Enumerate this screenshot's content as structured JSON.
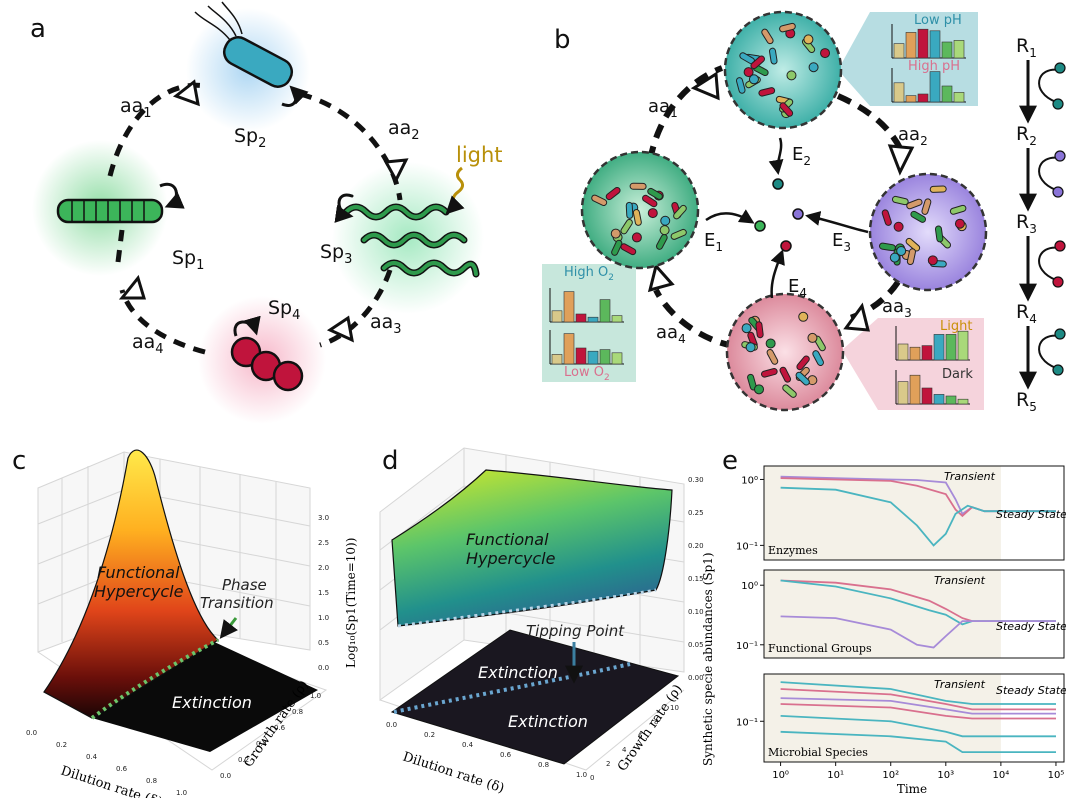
{
  "panel_labels": [
    "a",
    "b",
    "c",
    "d",
    "e"
  ],
  "panel_a": {
    "aa": [
      "aa",
      "aa",
      "aa",
      "aa"
    ],
    "aa_sub": [
      "1",
      "2",
      "3",
      "4"
    ],
    "sp": [
      "Sp",
      "Sp",
      "Sp",
      "Sp"
    ],
    "sp_sub": [
      "1",
      "2",
      "3",
      "4"
    ],
    "light": "light",
    "colors": {
      "sp1": "#3cb55a",
      "sp2": "#3aa9c0",
      "sp3": "#2e9a4c",
      "sp4": "#c0143c",
      "light": "#b8900a"
    }
  },
  "panel_b": {
    "aa": [
      "aa",
      "aa",
      "aa",
      "aa"
    ],
    "aa_sub": [
      "1",
      "2",
      "3",
      "4"
    ],
    "e": [
      "E",
      "E",
      "E",
      "E"
    ],
    "e_sub": [
      "1",
      "2",
      "3",
      "4"
    ],
    "r": [
      "R",
      "R",
      "R",
      "R",
      "R"
    ],
    "r_sub": [
      "1",
      "2",
      "3",
      "4",
      "5"
    ],
    "conditions": {
      "low_ph": "Low pH",
      "high_ph": "High pH",
      "high_o2": "High O",
      "low_o2": "Low O",
      "o2_sub": "2",
      "light": "Light",
      "dark": "Dark"
    },
    "bar_charts": {
      "low_ph": [
        0.45,
        0.8,
        0.9,
        0.85,
        0.5,
        0.55
      ],
      "high_ph": [
        0.6,
        0.2,
        0.25,
        0.95,
        0.5,
        0.3
      ],
      "high_o2": [
        0.35,
        0.95,
        0.25,
        0.15,
        0.7,
        0.2
      ],
      "low_o2": [
        0.3,
        0.95,
        0.5,
        0.4,
        0.45,
        0.35
      ],
      "light": [
        0.5,
        0.4,
        0.45,
        0.8,
        0.8,
        0.9
      ],
      "dark": [
        0.7,
        0.9,
        0.5,
        0.3,
        0.25,
        0.15
      ]
    }
  },
  "panel_c": {
    "regions": [
      "Functional\nHypercycle",
      "Extinction"
    ],
    "annotation": "Phase\nTransition",
    "xlabel": "Dilution rate (δ)",
    "ylabel": "Growth rate (ρ)",
    "zlabel": "Log₁₀(Sp1(Time=10))",
    "x_ticks": [
      "0.0",
      "0.2",
      "0.4",
      "0.6",
      "0.8",
      "1.0"
    ],
    "y_ticks": [
      "0.0",
      "0.2",
      "0.4",
      "0.6",
      "0.8",
      "1.0"
    ],
    "z_ticks": [
      "0.0",
      "0.5",
      "1.0",
      "1.5",
      "2.0",
      "2.5",
      "3.0"
    ]
  },
  "panel_d": {
    "regions": [
      "Functional\nHypercycle",
      "Extinction",
      "Extinction"
    ],
    "annotation": "Tipping Point",
    "xlabel": "Dilution rate (δ)",
    "ylabel": "Growth rate (ρ)",
    "x_ticks": [
      "0.0",
      "0.2",
      "0.4",
      "0.6",
      "0.8",
      "1.0"
    ],
    "y_ticks": [
      "0",
      "2",
      "4",
      "6",
      "8",
      "10"
    ],
    "z_ticks": [
      "0.00",
      "0.05",
      "0.10",
      "0.15",
      "0.20",
      "0.25",
      "0.30"
    ]
  },
  "chart_data": {
    "type": "line",
    "ylabel": "Synthetic specie abundances (Sp1)",
    "xlabel": "Time",
    "x_ticks": [
      "10⁰",
      "10¹",
      "10²",
      "10³",
      "10⁴",
      "10⁵"
    ],
    "log_x": true,
    "log_y": true,
    "annotations": [
      "Transient",
      "Steady State"
    ],
    "subplots": [
      {
        "name": "Enzymes",
        "y_ticks": [
          "10⁰",
          "10⁻¹"
        ],
        "series": [
          {
            "color": "#a78bd8",
            "x": [
              1,
              10,
              100,
              300,
              1000,
              1500,
              2000,
              3000,
              5000,
              100000
            ],
            "y": [
              1.1,
              1.05,
              1.0,
              0.98,
              0.9,
              0.5,
              0.3,
              0.38,
              0.33,
              0.33
            ]
          },
          {
            "color": "#d9708e",
            "x": [
              1,
              10,
              100,
              300,
              1000,
              1500,
              2000,
              3000,
              5000,
              100000
            ],
            "y": [
              1.05,
              1.0,
              0.95,
              0.8,
              0.6,
              0.35,
              0.28,
              0.38,
              0.33,
              0.33
            ]
          },
          {
            "color": "#4ab5c0",
            "x": [
              1,
              10,
              100,
              300,
              600,
              1000,
              1500,
              2500,
              5000,
              100000
            ],
            "y": [
              0.75,
              0.7,
              0.45,
              0.2,
              0.1,
              0.15,
              0.3,
              0.4,
              0.33,
              0.33
            ]
          }
        ]
      },
      {
        "name": "Functional Groups",
        "y_ticks": [
          "10⁰",
          "10⁻¹"
        ],
        "series": [
          {
            "color": "#d9708e",
            "x": [
              1,
              10,
              100,
              500,
              1000,
              2000,
              3000,
              100000
            ],
            "y": [
              1.2,
              1.1,
              0.85,
              0.55,
              0.4,
              0.28,
              0.25,
              0.25
            ]
          },
          {
            "color": "#4ab5c0",
            "x": [
              1,
              10,
              100,
              500,
              1000,
              2000,
              3000,
              100000
            ],
            "y": [
              1.2,
              0.95,
              0.6,
              0.38,
              0.32,
              0.22,
              0.25,
              0.25
            ]
          },
          {
            "color": "#a78bd8",
            "x": [
              1,
              10,
              100,
              300,
              600,
              1000,
              2000,
              100000
            ],
            "y": [
              0.3,
              0.28,
              0.18,
              0.1,
              0.09,
              0.14,
              0.25,
              0.25
            ]
          }
        ]
      },
      {
        "name": "Microbial Species",
        "y_ticks": [
          "10⁻¹"
        ],
        "series": [
          {
            "color": "#4ab5c0",
            "x": [
              1,
              100,
              1000,
              3000,
              100000
            ],
            "y": [
              0.38,
              0.3,
              0.2,
              0.18,
              0.18
            ]
          },
          {
            "color": "#d9708e",
            "x": [
              1,
              100,
              1000,
              3000,
              100000
            ],
            "y": [
              0.3,
              0.25,
              0.18,
              0.15,
              0.15
            ]
          },
          {
            "color": "#a78bd8",
            "x": [
              1,
              100,
              1000,
              3000,
              100000
            ],
            "y": [
              0.22,
              0.2,
              0.15,
              0.13,
              0.13
            ]
          },
          {
            "color": "#d9708e",
            "x": [
              1,
              100,
              1000,
              3000,
              100000
            ],
            "y": [
              0.18,
              0.16,
              0.12,
              0.11,
              0.11
            ]
          },
          {
            "color": "#4ab5c0",
            "x": [
              1,
              100,
              1000,
              2000,
              100000
            ],
            "y": [
              0.12,
              0.1,
              0.07,
              0.06,
              0.06
            ]
          },
          {
            "color": "#4ab5c0",
            "x": [
              1,
              100,
              1000,
              2000,
              100000
            ],
            "y": [
              0.07,
              0.06,
              0.05,
              0.035,
              0.035
            ]
          }
        ]
      }
    ]
  }
}
